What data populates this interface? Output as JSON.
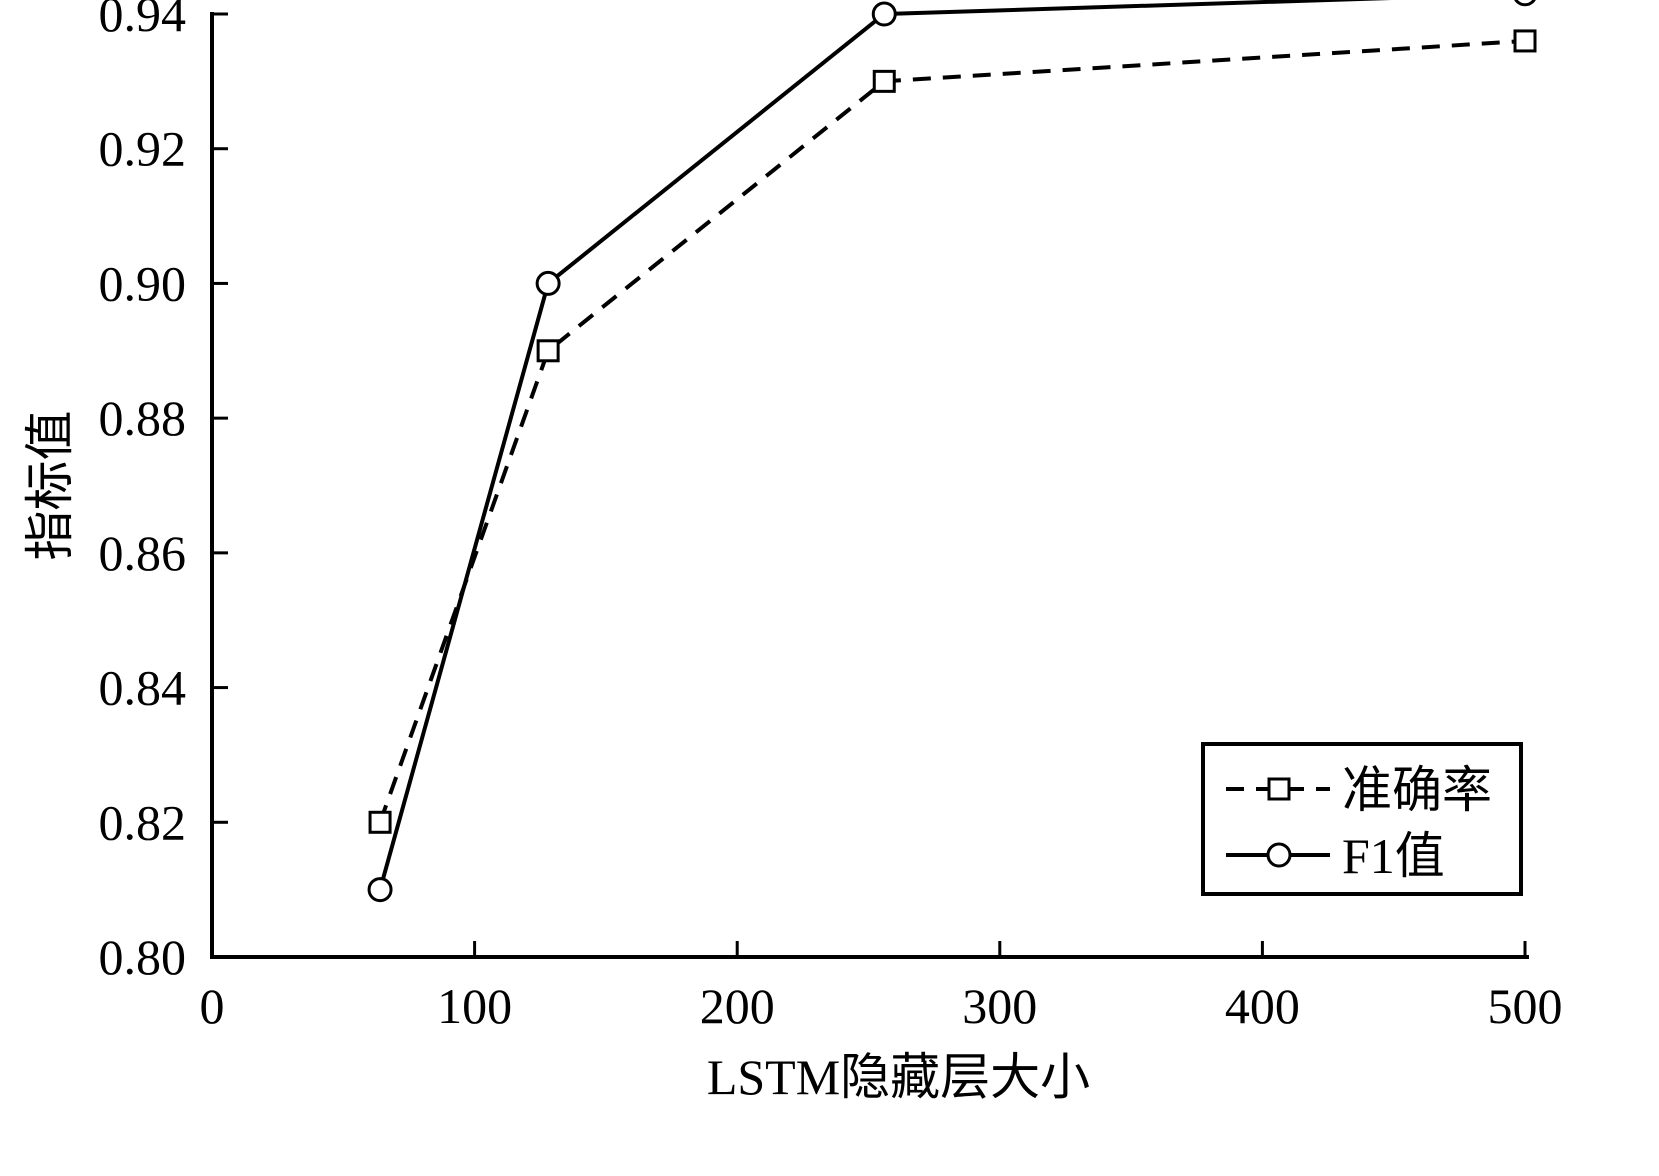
{
  "chart_data": {
    "type": "line",
    "title": "",
    "xlabel": "LSTM隐藏层大小",
    "ylabel": "指标值",
    "xlim": [
      0,
      500
    ],
    "ylim": [
      0.8,
      0.94
    ],
    "x_ticks": [
      "0",
      "100",
      "200",
      "300",
      "400",
      "500"
    ],
    "y_ticks": [
      "0.80",
      "0.82",
      "0.84",
      "0.86",
      "0.88",
      "0.90",
      "0.92",
      "0.94"
    ],
    "x": [
      64,
      128,
      256,
      500
    ],
    "series": [
      {
        "name": "准确率",
        "values": [
          0.82,
          0.89,
          0.93,
          0.936
        ],
        "style": "dashed",
        "marker": "square",
        "color": "#000000"
      },
      {
        "name": "F1值",
        "values": [
          0.81,
          0.9,
          0.94,
          0.943
        ],
        "style": "solid",
        "marker": "circle",
        "color": "#000000"
      }
    ],
    "grid": false,
    "legend_position": "bottom-right"
  }
}
